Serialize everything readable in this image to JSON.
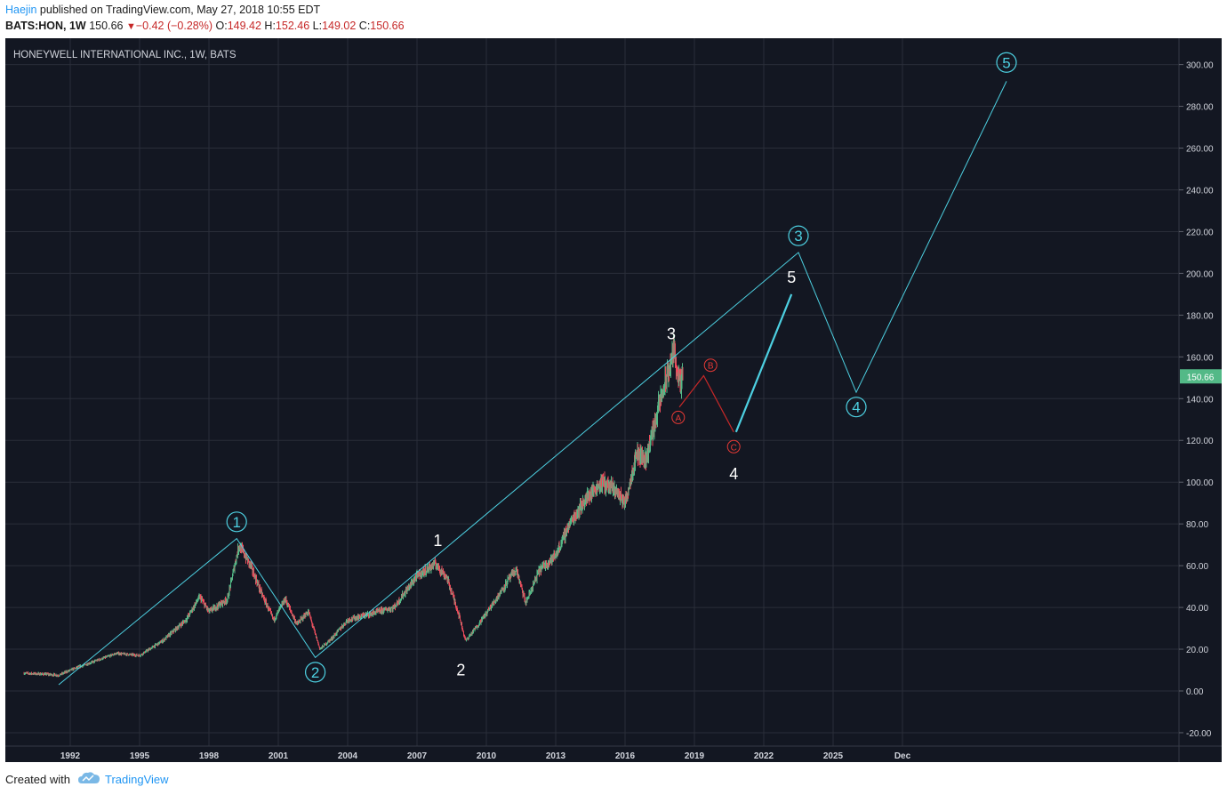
{
  "header": {
    "author": "Haejin",
    "published_text": "published on TradingView.com, May 27, 2018 10:55 EDT",
    "symbol": "BATS:HON, 1W",
    "last": "150.66",
    "down_arrow": "▼",
    "change": "−0.42 (−0.28%)",
    "open_label": "O:",
    "open": "149.42",
    "high_label": "H:",
    "high": "152.46",
    "low_label": "L:",
    "low": "149.02",
    "close_label": "C:",
    "close": "150.66"
  },
  "footer": {
    "created_with": "Created with",
    "brand": "TradingView"
  },
  "colors": {
    "background": "#131722",
    "grid": "#2a2e39",
    "axis_text": "#d1d4dc",
    "candle_up": "#53b987",
    "candle_down": "#eb4d5c",
    "cyan": "#4dd0e1",
    "red_wave": "#c62828",
    "white_label": "#ffffff",
    "price_badge": "#53b987"
  },
  "chart_data": {
    "type": "candlestick",
    "title": "HONEYWELL INTERNATIONAL INC., 1W, BATS",
    "y_axis": {
      "min": -20,
      "max": 300,
      "ticks": [
        "300.00",
        "280.00",
        "260.00",
        "240.00",
        "220.00",
        "200.00",
        "180.00",
        "160.00",
        "140.00",
        "120.00",
        "100.00",
        "80.00",
        "60.00",
        "40.00",
        "20.00",
        "0.00",
        "-20.00"
      ]
    },
    "x_axis": {
      "ticks": [
        "1992",
        "1995",
        "1998",
        "2001",
        "2004",
        "2007",
        "2010",
        "2013",
        "2016",
        "2019",
        "2022",
        "2025",
        "Dec"
      ]
    },
    "price_series": {
      "name": "BATS:HON",
      "points": [
        [
          1990.0,
          8.5
        ],
        [
          1991.0,
          8.0
        ],
        [
          1991.5,
          7.5
        ],
        [
          1992.0,
          10
        ],
        [
          1993.0,
          14
        ],
        [
          1994.0,
          18
        ],
        [
          1995.0,
          17
        ],
        [
          1996.0,
          24
        ],
        [
          1997.0,
          34
        ],
        [
          1997.6,
          45
        ],
        [
          1998.0,
          38
        ],
        [
          1998.8,
          44
        ],
        [
          1999.3,
          70
        ],
        [
          1999.8,
          60
        ],
        [
          2000.3,
          46
        ],
        [
          2000.8,
          34
        ],
        [
          2001.3,
          44
        ],
        [
          2001.8,
          32
        ],
        [
          2002.3,
          38
        ],
        [
          2002.8,
          20
        ],
        [
          2003.3,
          25
        ],
        [
          2004.0,
          34
        ],
        [
          2005.0,
          37
        ],
        [
          2006.0,
          40
        ],
        [
          2007.0,
          55
        ],
        [
          2007.8,
          61
        ],
        [
          2008.3,
          54
        ],
        [
          2008.8,
          37
        ],
        [
          2009.1,
          24
        ],
        [
          2009.6,
          31
        ],
        [
          2010.3,
          42
        ],
        [
          2011.0,
          54
        ],
        [
          2011.3,
          58
        ],
        [
          2011.7,
          42
        ],
        [
          2012.3,
          58
        ],
        [
          2013.0,
          65
        ],
        [
          2013.6,
          80
        ],
        [
          2014.3,
          92
        ],
        [
          2015.0,
          100
        ],
        [
          2015.6,
          96
        ],
        [
          2016.0,
          90
        ],
        [
          2016.5,
          114
        ],
        [
          2016.9,
          111
        ],
        [
          2017.5,
          138
        ],
        [
          2018.0,
          158
        ],
        [
          2018.1,
          164
        ],
        [
          2018.4,
          145
        ],
        [
          2018.5,
          150.66
        ]
      ]
    },
    "current_price": {
      "label": "150.66",
      "value": 150.66
    },
    "cyan_wave_path": [
      [
        1991.5,
        3
      ],
      [
        1999.2,
        73
      ],
      [
        2002.6,
        16
      ],
      [
        2023.5,
        210
      ],
      [
        2026.0,
        143
      ],
      [
        2032.5,
        292
      ]
    ],
    "red_abc_path": [
      [
        2018.35,
        136
      ],
      [
        2019.4,
        151
      ],
      [
        2020.7,
        124
      ]
    ],
    "projection_5_segment": [
      [
        2020.8,
        124
      ],
      [
        2023.2,
        190
      ]
    ],
    "cyan_labels": [
      {
        "text": "1",
        "x": 1999.2,
        "y": 81
      },
      {
        "text": "2",
        "x": 2002.6,
        "y": 9
      },
      {
        "text": "3",
        "x": 2023.5,
        "y": 218
      },
      {
        "text": "4",
        "x": 2026.0,
        "y": 136
      },
      {
        "text": "5",
        "x": 2032.5,
        "y": 301
      }
    ],
    "white_labels": [
      {
        "text": "1",
        "x": 2007.9,
        "y": 72
      },
      {
        "text": "2",
        "x": 2008.9,
        "y": 10
      },
      {
        "text": "3",
        "x": 2018.0,
        "y": 171
      },
      {
        "text": "4",
        "x": 2020.7,
        "y": 104
      },
      {
        "text": "5",
        "x": 2023.2,
        "y": 198
      }
    ],
    "red_labels": [
      {
        "text": "A",
        "x": 2018.3,
        "y": 131
      },
      {
        "text": "B",
        "x": 2019.7,
        "y": 156
      },
      {
        "text": "C",
        "x": 2020.7,
        "y": 117
      }
    ]
  }
}
